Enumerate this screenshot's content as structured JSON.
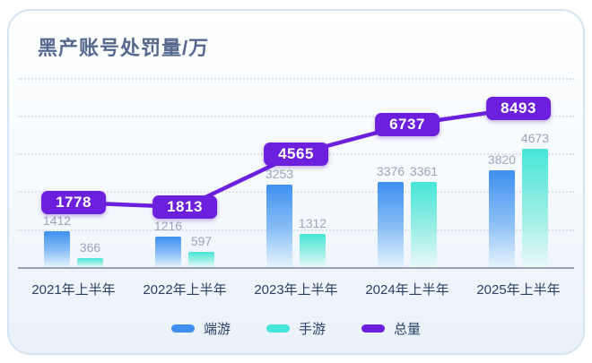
{
  "title": "黑产账号处罚量/万",
  "chart_data": {
    "type": "bar",
    "title": "黑产账号处罚量/万",
    "categories": [
      "2021年上半年",
      "2022年上半年",
      "2023年上半年",
      "2024年上半年",
      "2025年上半年"
    ],
    "series": [
      {
        "key": "pc",
        "name": "端游",
        "color": "#3e8ff0",
        "values": [
          1412,
          1216,
          3253,
          3376,
          3820
        ]
      },
      {
        "key": "mobile",
        "name": "手游",
        "color": "#45e6d8",
        "values": [
          366,
          597,
          1312,
          3361,
          4673
        ]
      }
    ],
    "line": {
      "key": "total",
      "name": "总量",
      "color": "#6c1fdd",
      "values": [
        1778,
        1813,
        4565,
        6737,
        8493
      ]
    },
    "ylim": [
      0,
      7500
    ],
    "y_ticks": [
      1500,
      3000,
      4500,
      6000,
      7500
    ],
    "grid": "dotted-horizontal",
    "legend_position": "bottom",
    "xlabel": "",
    "ylabel": ""
  },
  "colors": {
    "card_border": "#d3e4f3",
    "title_text": "#56688e",
    "bar_value_text": "#9aa6ba",
    "axis_text": "#2b4066",
    "baseline": "#97a0b2"
  }
}
